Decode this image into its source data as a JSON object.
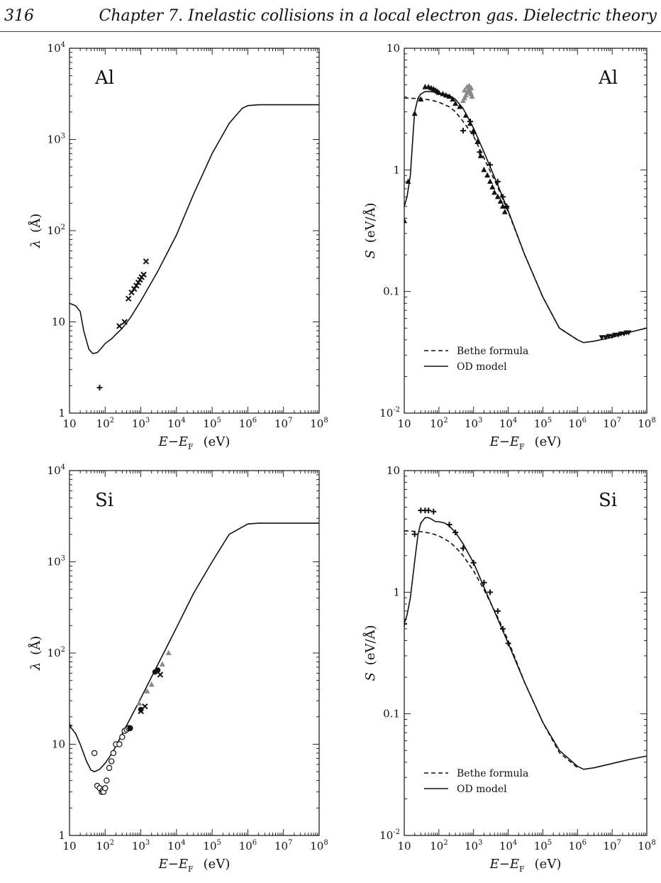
{
  "header": {
    "page_number": "316",
    "chapter_title": "Chapter 7.  Inelastic collisions in a local electron gas. Dielectric theory"
  },
  "chart_data": [
    {
      "type": "line",
      "material_label": "Al",
      "xlabel_main": "E−E",
      "xlabel_sub": "F",
      "xlabel_unit": "(eV)",
      "ylabel_symbol": "λ",
      "ylabel_unit": "(Å)",
      "x_log": true,
      "y_log": true,
      "xlim": [
        10,
        100000000
      ],
      "ylim": [
        1,
        10000
      ],
      "xticks": [
        "10",
        "10^2",
        "10^3",
        "10^4",
        "10^5",
        "10^6",
        "10^7",
        "10^8"
      ],
      "yticks": [
        "1",
        "10",
        "10^2",
        "10^3",
        "10^4"
      ],
      "series": [
        {
          "style": "solid",
          "x": [
            10,
            15,
            20,
            25,
            35,
            45,
            60,
            80,
            100,
            150,
            200,
            300,
            500,
            1000,
            3000,
            10000,
            30000,
            100000,
            300000,
            700000,
            1000000,
            2000000,
            10000000,
            100000000
          ],
          "y": [
            16,
            15,
            13,
            8,
            5,
            4.5,
            4.6,
            5.2,
            5.8,
            6.5,
            7.3,
            8.5,
            11,
            17,
            36,
            90,
            250,
            700,
            1500,
            2200,
            2350,
            2400,
            2400,
            2400
          ]
        },
        {
          "style": "points-x",
          "x": [
            250,
            350,
            450,
            550,
            650,
            750,
            850,
            950,
            1050,
            1200,
            1400
          ],
          "y": [
            9,
            10,
            18,
            21,
            23,
            25,
            27,
            29,
            31,
            33,
            46
          ]
        },
        {
          "style": "points-plus",
          "x": [
            70
          ],
          "y": [
            1.9
          ]
        }
      ]
    },
    {
      "type": "line",
      "material_label": "Al",
      "xlabel_main": "E−E",
      "xlabel_sub": "F",
      "xlabel_unit": "(eV)",
      "ylabel_symbol": "S",
      "ylabel_unit": "(eV/Å)",
      "x_log": true,
      "y_log": true,
      "xlim": [
        10,
        100000000
      ],
      "ylim": [
        0.01,
        10
      ],
      "xticks": [
        "10",
        "10^2",
        "10^3",
        "10^4",
        "10^5",
        "10^6",
        "10^7",
        "10^8"
      ],
      "yticks": [
        "10^-2",
        "0.1",
        "1",
        "10"
      ],
      "legend": {
        "location": "bottom-left",
        "entries": [
          {
            "style": "dashed",
            "label": "Bethe formula"
          },
          {
            "style": "solid",
            "label": "OD model"
          }
        ]
      },
      "series": [
        {
          "style": "dashed",
          "x": [
            10,
            30,
            60,
            100,
            200,
            300,
            500,
            1000,
            2000,
            5000,
            10000,
            30000,
            100000,
            300000,
            1000000
          ],
          "y": [
            3.9,
            3.85,
            3.75,
            3.6,
            3.3,
            3.0,
            2.5,
            1.9,
            1.25,
            0.72,
            0.45,
            0.2,
            0.09,
            0.05,
            0.04
          ]
        },
        {
          "style": "solid",
          "x": [
            10,
            12,
            15,
            18,
            20,
            25,
            30,
            40,
            60,
            100,
            200,
            300,
            500,
            1000,
            2000,
            5000,
            10000,
            30000,
            100000,
            300000,
            1000000,
            1500000,
            3000000,
            10000000,
            30000000,
            100000000
          ],
          "y": [
            0.5,
            0.6,
            0.9,
            2.0,
            3.0,
            3.9,
            4.2,
            4.4,
            4.4,
            4.3,
            4.1,
            3.8,
            3.2,
            2.2,
            1.4,
            0.75,
            0.46,
            0.2,
            0.09,
            0.05,
            0.04,
            0.038,
            0.039,
            0.042,
            0.046,
            0.05
          ]
        },
        {
          "style": "points-triangle",
          "x": [
            10,
            13,
            20,
            30,
            40,
            50,
            60,
            70,
            80,
            90,
            100,
            130,
            160,
            200,
            250,
            300,
            400,
            600,
            800,
            1000,
            1300,
            1600,
            2000,
            2500,
            3000,
            3500,
            4000,
            5000,
            6000,
            7000,
            8000,
            9000
          ],
          "y": [
            0.38,
            0.8,
            2.9,
            3.8,
            4.8,
            4.8,
            4.7,
            4.6,
            4.5,
            4.4,
            4.3,
            4.2,
            4.1,
            4.0,
            3.8,
            3.5,
            3.3,
            2.8,
            2.4,
            2.1,
            1.7,
            1.3,
            1.0,
            0.9,
            0.8,
            0.72,
            0.65,
            0.6,
            0.55,
            0.5,
            0.45,
            0.5
          ]
        },
        {
          "style": "points-plus",
          "x": [
            500,
            800,
            1000,
            1500,
            3000,
            5000,
            7000,
            9000
          ],
          "y": [
            2.1,
            2.5,
            2.0,
            1.4,
            1.1,
            0.8,
            0.6,
            0.5
          ]
        },
        {
          "style": "points-grey",
          "x": [
            500,
            550,
            600,
            650,
            700,
            750,
            800,
            850,
            900,
            550,
            650,
            750,
            850
          ],
          "y": [
            3.7,
            3.9,
            4.1,
            4.3,
            4.5,
            4.6,
            4.4,
            4.2,
            4.0,
            4.5,
            4.8,
            4.9,
            4.7
          ]
        },
        {
          "style": "points-triangle-down",
          "x": [
            5000000,
            6500000,
            8000000,
            10000000,
            12000000,
            15000000,
            18000000,
            22000000,
            26000000,
            30000000
          ],
          "y": [
            0.042,
            0.042,
            0.043,
            0.043,
            0.044,
            0.044,
            0.045,
            0.045,
            0.046,
            0.046
          ]
        }
      ]
    },
    {
      "type": "line",
      "material_label": "Si",
      "xlabel_main": "E−E",
      "xlabel_sub": "F",
      "xlabel_unit": "(eV)",
      "ylabel_symbol": "λ",
      "ylabel_unit": "(Å)",
      "x_log": true,
      "y_log": true,
      "xlim": [
        10,
        100000000
      ],
      "ylim": [
        1,
        10000
      ],
      "xticks": [
        "10",
        "10^2",
        "10^3",
        "10^4",
        "10^5",
        "10^6",
        "10^7",
        "10^8"
      ],
      "yticks": [
        "1",
        "10",
        "10^2",
        "10^3",
        "10^4"
      ],
      "series": [
        {
          "style": "solid",
          "x": [
            10,
            15,
            20,
            30,
            40,
            50,
            70,
            100,
            150,
            200,
            300,
            500,
            1000,
            3000,
            10000,
            30000,
            100000,
            300000,
            1000000,
            2000000,
            10000000,
            100000000
          ],
          "y": [
            16,
            13,
            10,
            6.5,
            5.2,
            5.0,
            5.3,
            6.2,
            7.8,
            9.5,
            13,
            19,
            32,
            75,
            190,
            450,
            1000,
            2000,
            2600,
            2650,
            2650,
            2650
          ]
        },
        {
          "style": "points-plus",
          "x": [
            10
          ],
          "y": [
            16
          ]
        },
        {
          "style": "points-open-circle",
          "x": [
            50,
            60,
            70,
            80,
            85,
            90,
            100,
            110,
            130,
            150,
            170,
            200,
            250,
            300,
            350,
            400,
            450,
            500
          ],
          "y": [
            8,
            3.5,
            3.3,
            3.0,
            3.1,
            3.0,
            3.3,
            4.0,
            5.5,
            6.5,
            8.0,
            10,
            10,
            12,
            14,
            14.5,
            15,
            15
          ]
        },
        {
          "style": "points-filled-circle",
          "x": [
            500,
            1000,
            2500,
            3000
          ],
          "y": [
            15,
            24,
            62,
            65
          ]
        },
        {
          "style": "points-grey",
          "x": [
            900,
            1500,
            2000,
            4000,
            6000
          ],
          "y": [
            28,
            38,
            45,
            75,
            100
          ]
        },
        {
          "style": "points-x",
          "x": [
            1000,
            1300,
            3500
          ],
          "y": [
            23,
            26,
            58
          ]
        }
      ]
    },
    {
      "type": "line",
      "material_label": "Si",
      "xlabel_main": "E−E",
      "xlabel_sub": "F",
      "xlabel_unit": "(eV)",
      "ylabel_symbol": "S",
      "ylabel_unit": "(eV/Å)",
      "x_log": true,
      "y_log": true,
      "xlim": [
        10,
        100000000
      ],
      "ylim": [
        0.01,
        10
      ],
      "xticks": [
        "10",
        "10^2",
        "10^3",
        "10^4",
        "10^5",
        "10^6",
        "10^7",
        "10^8"
      ],
      "yticks": [
        "10^-2",
        "0.1",
        "1",
        "10"
      ],
      "legend": {
        "location": "bottom-left",
        "entries": [
          {
            "style": "dashed",
            "label": "Bethe formula"
          },
          {
            "style": "solid",
            "label": "OD model"
          }
        ]
      },
      "series": [
        {
          "style": "dashed",
          "x": [
            10,
            30,
            60,
            100,
            200,
            300,
            500,
            1000,
            2000,
            5000,
            10000,
            30000,
            100000,
            300000,
            1000000
          ],
          "y": [
            3.2,
            3.15,
            3.05,
            2.9,
            2.6,
            2.35,
            2.0,
            1.5,
            1.05,
            0.62,
            0.4,
            0.18,
            0.085,
            0.048,
            0.036
          ]
        },
        {
          "style": "solid",
          "x": [
            10,
            12,
            15,
            20,
            25,
            30,
            40,
            50,
            60,
            80,
            100,
            150,
            200,
            300,
            500,
            1000,
            2000,
            5000,
            10000,
            30000,
            100000,
            300000,
            1000000,
            1500000,
            3000000,
            10000000,
            30000000,
            100000000
          ],
          "y": [
            0.55,
            0.65,
            0.9,
            1.8,
            3.0,
            3.7,
            4.1,
            4.1,
            4.0,
            3.8,
            3.8,
            3.7,
            3.5,
            3.1,
            2.5,
            1.75,
            1.1,
            0.6,
            0.38,
            0.18,
            0.085,
            0.05,
            0.037,
            0.035,
            0.036,
            0.039,
            0.042,
            0.045
          ]
        },
        {
          "style": "points-plus",
          "x": [
            10,
            20,
            30,
            40,
            50,
            70,
            200,
            300,
            500,
            1000,
            2000,
            3000,
            5000,
            7000,
            10000
          ],
          "y": [
            0.55,
            3.0,
            4.7,
            4.7,
            4.7,
            4.6,
            3.6,
            3.1,
            2.3,
            1.75,
            1.2,
            1.0,
            0.7,
            0.5,
            0.38
          ]
        }
      ]
    }
  ]
}
